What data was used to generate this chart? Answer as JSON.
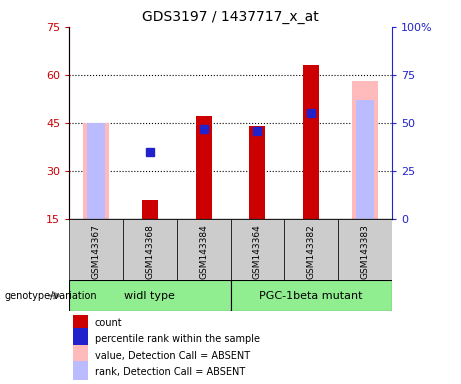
{
  "title": "GDS3197 / 1437717_x_at",
  "samples": [
    "GSM143367",
    "GSM143368",
    "GSM143384",
    "GSM143364",
    "GSM143382",
    "GSM143383"
  ],
  "count_values": [
    null,
    21,
    47,
    44,
    63,
    null
  ],
  "count_color": "#cc0000",
  "percentile_values": [
    null,
    35,
    47,
    46,
    55,
    null
  ],
  "percentile_color": "#2222cc",
  "absent_value_values": [
    45,
    null,
    null,
    null,
    null,
    58
  ],
  "absent_value_color": "#ffbbbb",
  "absent_rank_values": [
    50,
    null,
    null,
    null,
    null,
    62
  ],
  "absent_rank_color": "#bbbbff",
  "ylim_left": [
    15,
    75
  ],
  "ylim_right": [
    0,
    100
  ],
  "yticks_left": [
    15,
    30,
    45,
    60,
    75
  ],
  "yticks_right": [
    0,
    25,
    50,
    75,
    100
  ],
  "left_axis_color": "#cc0000",
  "right_axis_color": "#2222cc",
  "count_bar_width": 0.3,
  "absent_value_bar_width": 0.5,
  "absent_rank_bar_width": 0.5,
  "marker_size": 6,
  "gridlines_at": [
    30,
    45,
    60
  ],
  "group1_name": "widl type",
  "group2_name": "PGC-1beta mutant",
  "group_color": "#90EE90",
  "gray_color": "#cccccc",
  "legend_items": [
    {
      "color": "#cc0000",
      "square": true,
      "label": "count"
    },
    {
      "color": "#2222cc",
      "square": true,
      "label": "percentile rank within the sample"
    },
    {
      "color": "#ffbbbb",
      "square": true,
      "label": "value, Detection Call = ABSENT"
    },
    {
      "color": "#bbbbff",
      "square": true,
      "label": "rank, Detection Call = ABSENT"
    }
  ]
}
